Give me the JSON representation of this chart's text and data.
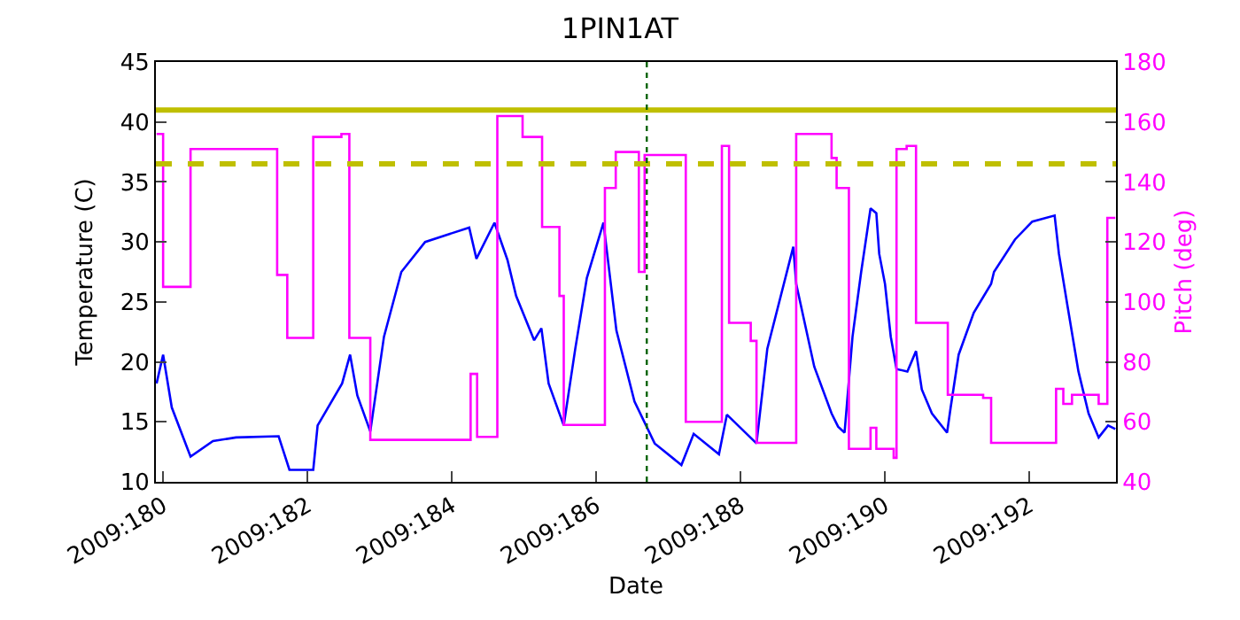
{
  "chart_data": {
    "type": "line",
    "title": "1PIN1AT",
    "xlabel": "Date",
    "ylabel": "Temperature (C)",
    "y2label": "Pitch (deg)",
    "xlim": [
      "2009-06-28T21:36",
      "2009-07-12T04:48"
    ],
    "xticks": [
      {
        "value": "2009-06-29",
        "label": "2009:180"
      },
      {
        "value": "2009-07-01",
        "label": "2009:182"
      },
      {
        "value": "2009-07-03",
        "label": "2009:184"
      },
      {
        "value": "2009-07-05",
        "label": "2009:186"
      },
      {
        "value": "2009-07-07",
        "label": "2009:188"
      },
      {
        "value": "2009-07-09",
        "label": "2009:190"
      },
      {
        "value": "2009-07-11",
        "label": "2009:192"
      }
    ],
    "ylim": [
      10,
      45
    ],
    "yticks": [
      10,
      15,
      20,
      25,
      30,
      35,
      40,
      45
    ],
    "y2lim": [
      40,
      180
    ],
    "y2ticks": [
      40,
      60,
      80,
      100,
      120,
      140,
      160,
      180
    ],
    "grid": false,
    "series": [
      {
        "type": "line",
        "color": "#0000ff",
        "x": [
          "2009-06-28T21:50",
          "2009-06-29T00:00",
          "2009-06-29T02:53",
          "2009-06-29T09:07",
          "2009-06-29T16:34",
          "2009-06-30T00:14",
          "2009-06-30T14:24",
          "2009-06-30T18:00",
          "2009-07-01T01:55",
          "2009-07-01T03:22",
          "2009-07-01T11:31",
          "2009-07-01T14:10",
          "2009-07-01T16:34",
          "2009-07-01T20:53",
          "2009-07-02T01:26",
          "2009-07-02T07:12",
          "2009-07-02T15:07",
          "2009-07-03T05:46",
          "2009-07-03T08:10",
          "2009-07-03T14:10",
          "2009-07-03T18:29",
          "2009-07-03T21:22",
          "2009-07-04T03:22",
          "2009-07-04T05:46",
          "2009-07-04T08:10",
          "2009-07-04T13:12",
          "2009-07-04T17:02",
          "2009-07-04T20:53",
          "2009-07-05T02:24",
          "2009-07-05T06:43",
          "2009-07-05T12:43",
          "2009-07-05T19:26",
          "2009-07-06T04:19",
          "2009-07-06T08:24",
          "2009-07-06T16:48",
          "2009-07-06T19:26",
          "2009-07-07T05:17",
          "2009-07-07T08:53",
          "2009-07-07T17:31",
          "2009-07-07T18:29",
          "2009-07-08T00:29",
          "2009-07-08T06:14",
          "2009-07-08T08:24",
          "2009-07-08T10:34",
          "2009-07-08T13:12",
          "2009-07-08T16:05",
          "2009-07-08T19:12",
          "2009-07-08T21:07",
          "2009-07-08T22:05",
          "2009-07-09T00:00",
          "2009-07-09T01:55",
          "2009-07-09T03:50",
          "2009-07-09T07:26",
          "2009-07-09T10:19",
          "2009-07-09T12:14",
          "2009-07-09T15:36",
          "2009-07-09T20:38",
          "2009-07-09T21:50",
          "2009-07-10T00:29",
          "2009-07-10T05:31",
          "2009-07-10T11:17",
          "2009-07-10T12:14",
          "2009-07-10T19:12",
          "2009-07-11T00:58",
          "2009-07-11T08:24",
          "2009-07-11T09:50",
          "2009-07-11T12:43",
          "2009-07-11T16:19",
          "2009-07-11T19:41",
          "2009-07-11T23:02",
          "2009-07-12T02:10",
          "2009-07-12T04:34"
        ],
        "values": [
          18.2,
          20.6,
          16.2,
          12.1,
          13.4,
          13.7,
          13.8,
          11.0,
          11.0,
          14.7,
          18.2,
          20.6,
          17.2,
          14.2,
          22.1,
          27.5,
          30.0,
          31.2,
          28.6,
          31.6,
          28.5,
          25.5,
          21.8,
          22.8,
          18.2,
          14.7,
          21.1,
          27.0,
          31.6,
          22.6,
          16.7,
          13.2,
          11.4,
          14.0,
          12.3,
          15.6,
          13.2,
          21.1,
          29.6,
          26.5,
          19.6,
          15.7,
          14.6,
          14.1,
          22.1,
          27.5,
          32.8,
          32.4,
          29.0,
          26.5,
          22.1,
          19.4,
          19.2,
          20.9,
          17.7,
          15.7,
          14.1,
          16.2,
          20.6,
          24.1,
          26.5,
          27.5,
          30.2,
          31.7,
          32.2,
          29.0,
          24.6,
          19.2,
          15.7,
          13.7,
          14.7,
          14.4
        ]
      },
      {
        "type": "step",
        "axis": "y2",
        "color": "#ff00ff",
        "x": [
          "2009-06-28T21:50",
          "2009-06-29T00:00",
          "2009-06-29T09:07",
          "2009-06-30T13:55",
          "2009-06-30T17:17",
          "2009-07-01T01:55",
          "2009-07-01T11:17",
          "2009-07-01T13:55",
          "2009-07-01T20:53",
          "2009-07-03T06:14",
          "2009-07-03T08:24",
          "2009-07-03T15:07",
          "2009-07-03T23:31",
          "2009-07-04T06:00",
          "2009-07-04T11:46",
          "2009-07-04T13:12",
          "2009-07-05T02:53",
          "2009-07-05T06:29",
          "2009-07-05T14:10",
          "2009-07-05T16:05",
          "2009-07-06T05:46",
          "2009-07-06T17:46",
          "2009-07-06T20:10",
          "2009-07-07T03:22",
          "2009-07-07T05:17",
          "2009-07-07T18:29",
          "2009-07-08T06:14",
          "2009-07-08T07:55",
          "2009-07-08T12:00",
          "2009-07-08T19:12",
          "2009-07-08T21:07",
          "2009-07-09T02:53",
          "2009-07-09T03:50",
          "2009-07-09T07:12",
          "2009-07-09T10:19",
          "2009-07-09T20:53",
          "2009-07-10T08:38",
          "2009-07-10T11:17",
          "2009-07-11T08:53",
          "2009-07-11T11:17",
          "2009-07-11T14:10",
          "2009-07-11T23:02",
          "2009-07-12T01:55",
          "2009-07-12T04:34"
        ],
        "values": [
          156,
          105,
          151,
          109,
          88,
          155,
          156,
          88,
          54,
          76,
          55,
          162,
          155,
          125,
          102,
          59,
          138,
          150,
          110,
          149,
          60,
          152,
          93,
          87,
          53,
          156,
          148,
          138,
          51,
          58,
          51,
          48,
          151,
          152,
          93,
          69,
          68,
          53,
          71,
          66,
          69,
          66,
          128,
          128
        ]
      }
    ],
    "ref_lines": [
      {
        "axis": "y",
        "value": 41,
        "color": "#bfbf00",
        "line_style": "solid"
      },
      {
        "axis": "y",
        "value": 36.5,
        "color": "#bfbf00",
        "line_style": "dashed"
      },
      {
        "axis": "x",
        "value": "2009-07-05T16:48",
        "color": "#006400",
        "line_style": "dotted"
      }
    ]
  }
}
